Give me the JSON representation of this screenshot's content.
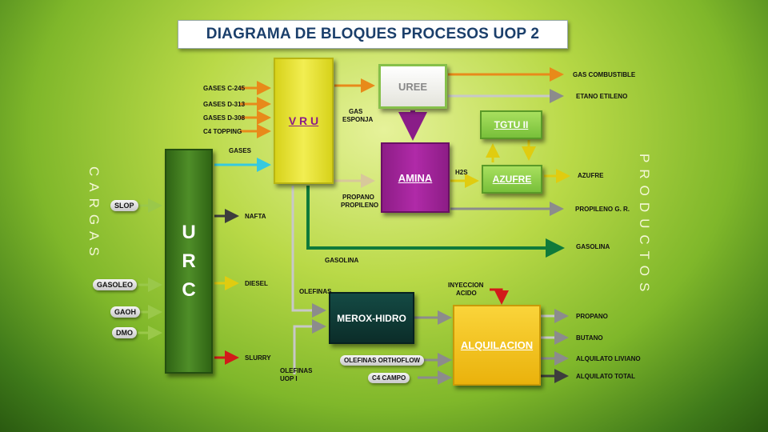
{
  "title": "DIAGRAMA DE BLOQUES PROCESOS UOP 2",
  "side": {
    "left": "CARGAS",
    "right": "PRODUCTOS"
  },
  "blocks": {
    "vru": "V R U",
    "uree": "UREE",
    "amina": "AMINA",
    "tgtu": "TGTU II",
    "azufre": "AZUFRE",
    "urc": [
      "U",
      "R",
      "C"
    ],
    "merox": "MEROX-HIDRO",
    "alquilacion": "ALQUILACION"
  },
  "vru_feeds": [
    "GASES C-245",
    "GASES D-313",
    "GASES D-308",
    "C4 TOPPING"
  ],
  "urc_feeds": {
    "slop": "SLOP",
    "gasoleo": "GASOLEO",
    "gaoh": "GAOH",
    "dmo": "DMO"
  },
  "labels": {
    "gases": "GASES",
    "gas_esponja": [
      "GAS",
      "ESPONJA"
    ],
    "propano_propileno": [
      "PROPANO",
      "PROPILENO"
    ],
    "h2s": "H2S",
    "gasolina_flow": "GASOLINA",
    "olefinas": "OLEFINAS",
    "olefinas_uop1": [
      "OLEFINAS",
      "UOP I"
    ],
    "inyeccion_acido": [
      "INYECCION",
      "ACIDO"
    ],
    "olefinas_orthoflow": "OLEFINAS ORTHOFLOW",
    "c4_campo": "C4 CAMPO"
  },
  "products": {
    "gas_combustible": "GAS COMBUSTIBLE",
    "etano_etileno": "ETANO ETILENO",
    "azufre": "AZUFRE",
    "propileno_gr": "PROPILENO G. R.",
    "gasolina": "GASOLINA",
    "nafta": "NAFTA",
    "diesel": "DIESEL",
    "slurry": "SLURRY",
    "propano": "PROPANO",
    "butano": "BUTANO",
    "alquilato_liviano": "ALQUILATO LIVIANO",
    "alquilato_total": "ALQUILATO TOTAL"
  },
  "colors": {
    "vru": "#e6e22a",
    "uree": "#f2f2ee",
    "amina": "#a0269a",
    "tgtu": "#8ed24a",
    "urc": "#3f7a1e",
    "merox": "#0e3b36",
    "alquilacion": "#f2c410",
    "arrow_orange": "#e88a1a",
    "arrow_gray": "#8c8c8c",
    "arrow_green": "#0f7a3a",
    "arrow_cyan": "#36c9e0",
    "arrow_red": "#d21a1a",
    "arrow_purple": "#8a1d88",
    "arrow_yellow": "#e0cc10",
    "arrow_dark": "#3d3d3d",
    "arrow_lightgreen": "#9ac84a"
  }
}
